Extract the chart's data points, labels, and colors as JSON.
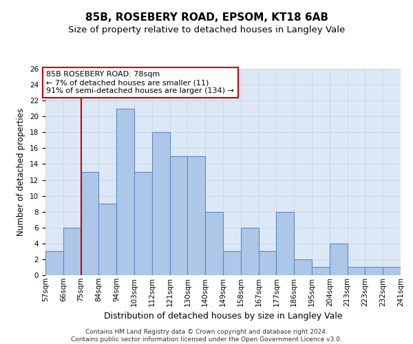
{
  "title1": "85B, ROSEBERY ROAD, EPSOM, KT18 6AB",
  "title2": "Size of property relative to detached houses in Langley Vale",
  "xlabel": "Distribution of detached houses by size in Langley Vale",
  "ylabel": "Number of detached properties",
  "categories": [
    "57sqm",
    "66sqm",
    "75sqm",
    "84sqm",
    "94sqm",
    "103sqm",
    "112sqm",
    "121sqm",
    "130sqm",
    "140sqm",
    "149sqm",
    "158sqm",
    "167sqm",
    "177sqm",
    "186sqm",
    "195sqm",
    "204sqm",
    "213sqm",
    "223sqm",
    "232sqm",
    "241sqm"
  ],
  "values": [
    3,
    6,
    13,
    9,
    21,
    13,
    18,
    15,
    15,
    8,
    3,
    6,
    3,
    8,
    2,
    1,
    4,
    1,
    1,
    1
  ],
  "bar_color": "#aec6e8",
  "bar_edge_color": "#5b8ac7",
  "vline_color": "#cc0000",
  "vline_pos": 2.5,
  "annotation_text": "85B ROSEBERY ROAD: 78sqm\n← 7% of detached houses are smaller (11)\n91% of semi-detached houses are larger (134) →",
  "annotation_box_color": "#ffffff",
  "annotation_box_edge_color": "#cc0000",
  "ylim": [
    0,
    26
  ],
  "yticks": [
    0,
    2,
    4,
    6,
    8,
    10,
    12,
    14,
    16,
    18,
    20,
    22,
    24,
    26
  ],
  "grid_color": "#c8d8ea",
  "background_color": "#dce8f5",
  "footer1": "Contains HM Land Registry data © Crown copyright and database right 2024.",
  "footer2": "Contains public sector information licensed under the Open Government Licence v3.0.",
  "title1_fontsize": 11,
  "title2_fontsize": 9.5,
  "xlabel_fontsize": 9,
  "ylabel_fontsize": 8.5,
  "tick_fontsize": 7.5,
  "annotation_fontsize": 8,
  "footer_fontsize": 6.5
}
